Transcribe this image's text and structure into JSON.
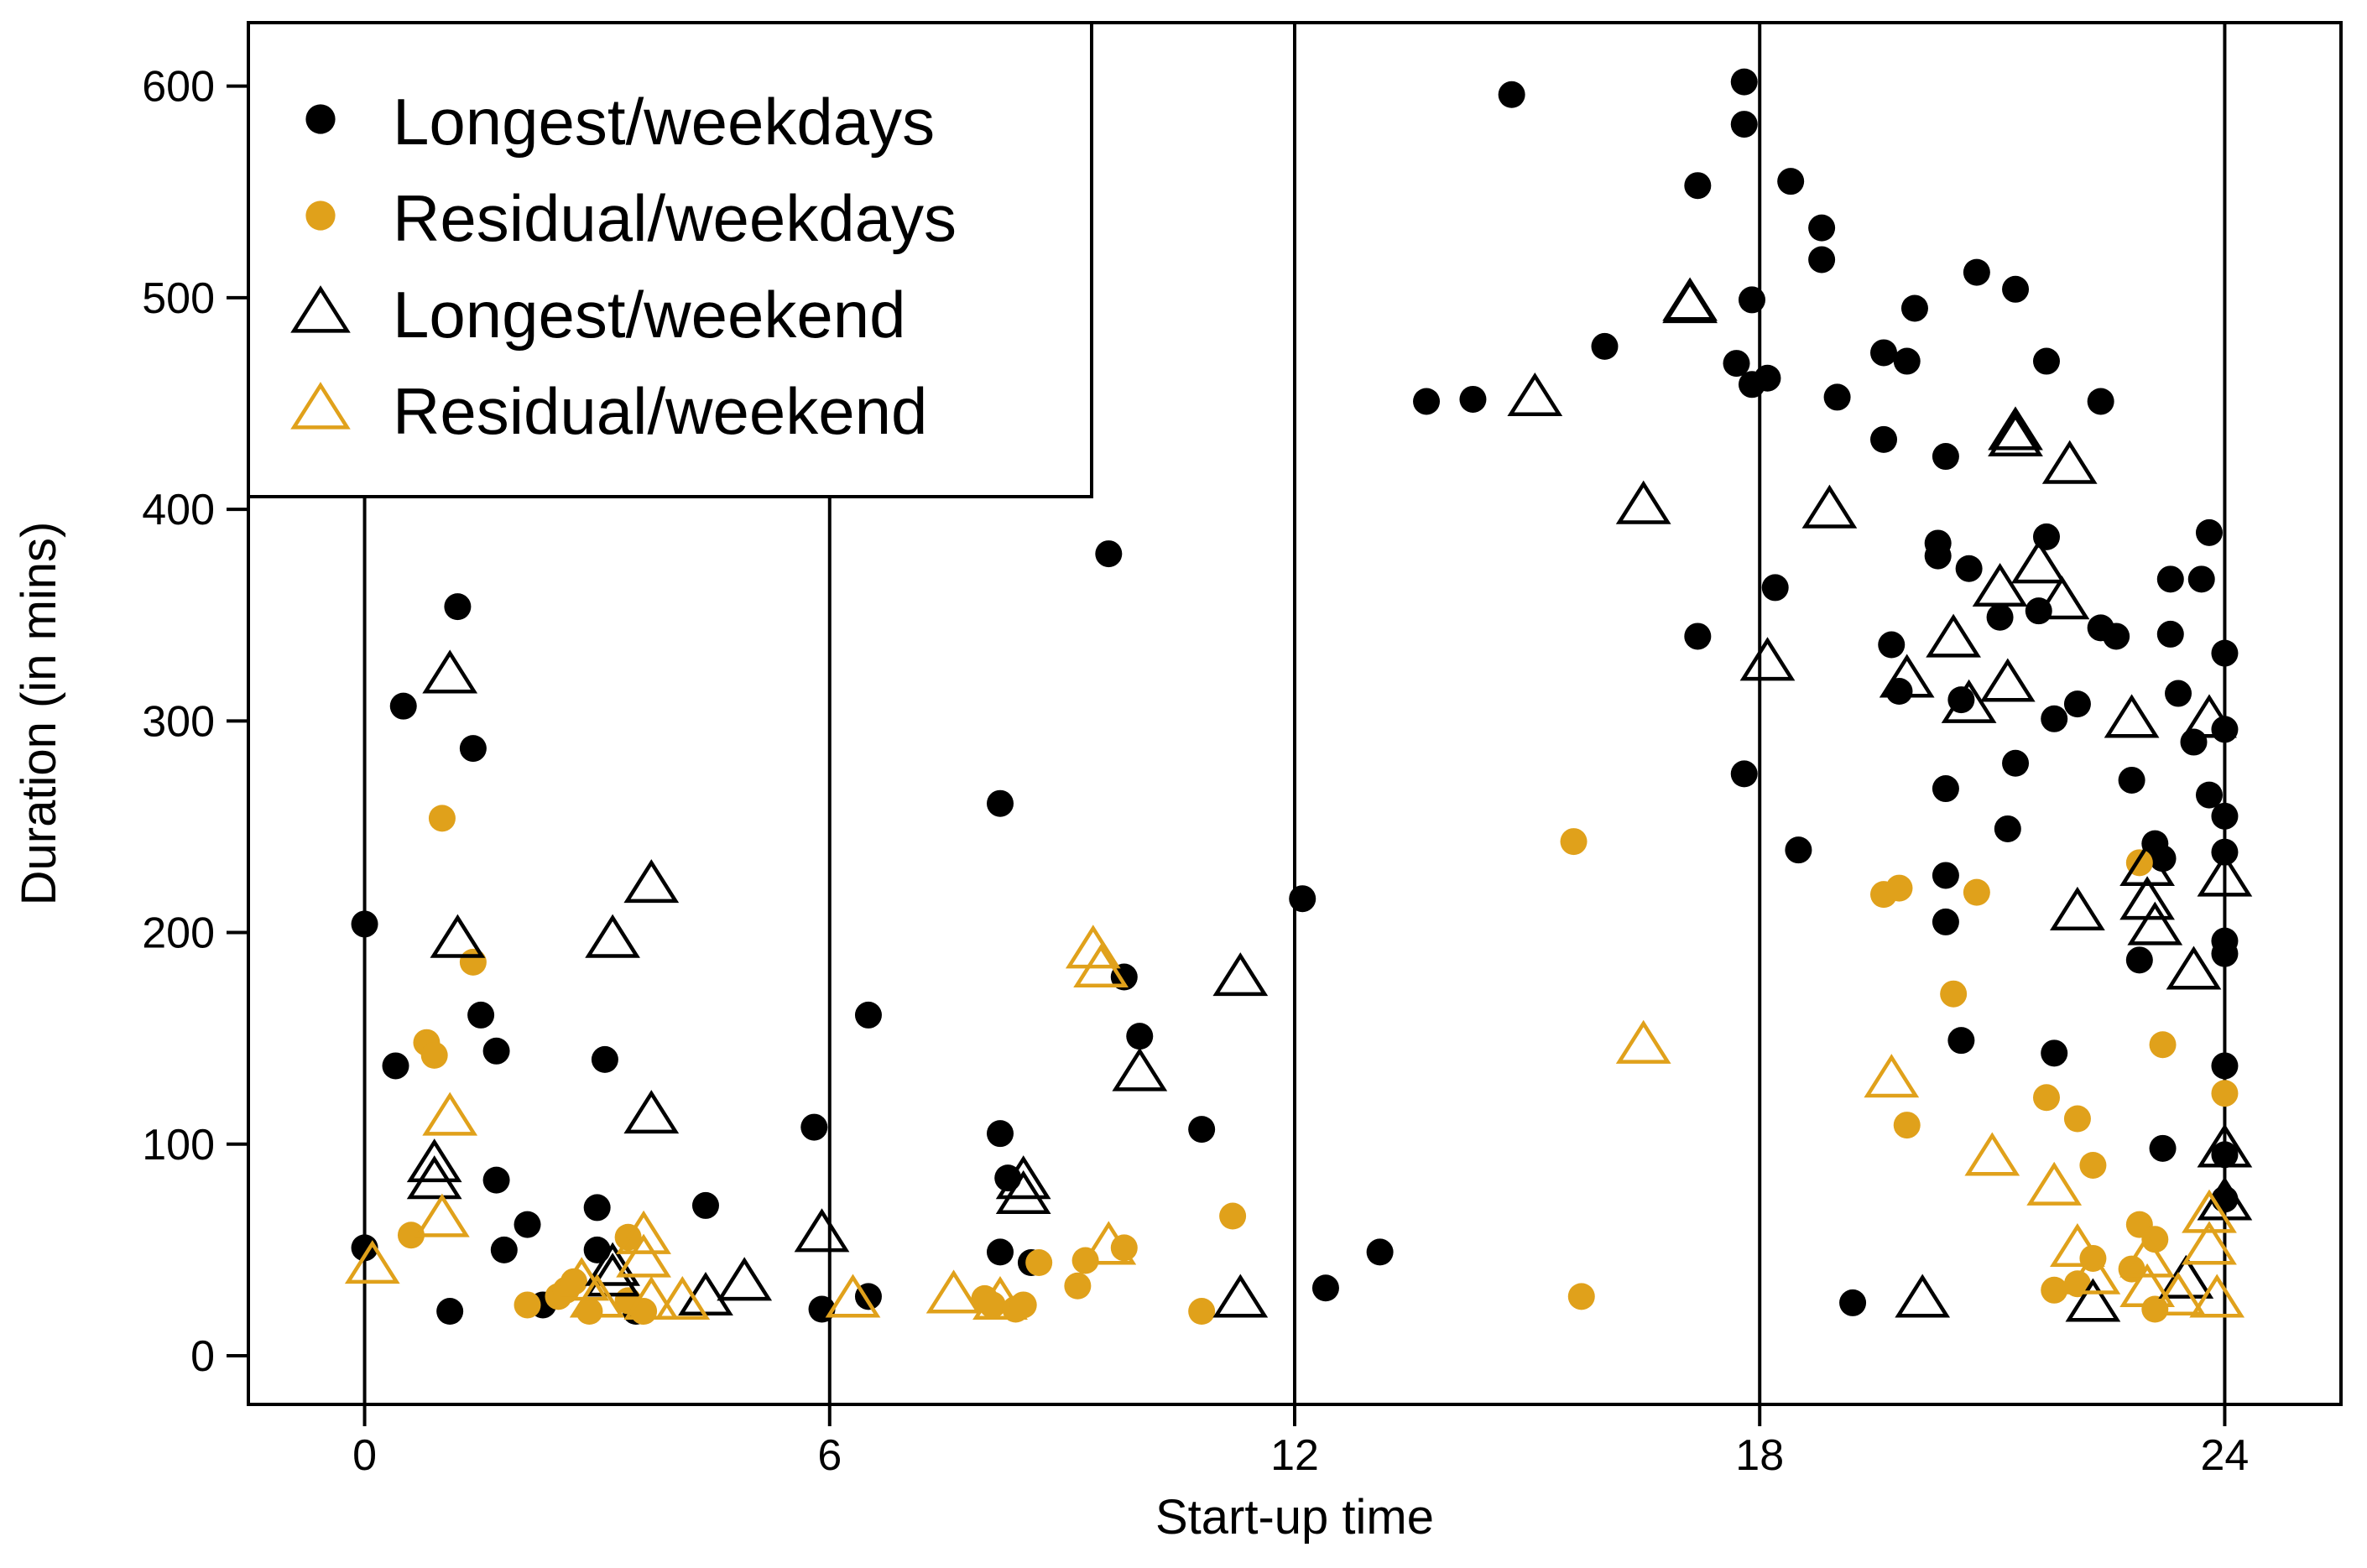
{
  "chart_data": {
    "type": "scatter",
    "title": "",
    "xlabel": "Start-up time",
    "ylabel": "Duration (in mins)",
    "xlim": [
      -1.5,
      25.5
    ],
    "ylim": [
      -23,
      630
    ],
    "x_ticks": [
      0,
      6,
      12,
      18,
      24
    ],
    "x_tick_labels": [
      "0",
      "6",
      "12",
      "18",
      "24"
    ],
    "y_ticks": [
      0,
      100,
      200,
      300,
      400,
      500,
      600
    ],
    "y_tick_labels": [
      "0",
      "100",
      "200",
      "300",
      "400",
      "500",
      "600"
    ],
    "reference_lines_x": [
      0,
      6,
      12,
      18,
      24
    ],
    "legend_position": "top-left",
    "colors": {
      "black": "#000000",
      "orange": "#E0A11B"
    },
    "series": [
      {
        "name": "Longest/weekdays",
        "marker": "circle-filled",
        "color": "#000000",
        "points": [
          [
            0,
            204
          ],
          [
            0,
            51
          ],
          [
            0.4,
            137
          ],
          [
            0.5,
            307
          ],
          [
            1.1,
            21
          ],
          [
            1.2,
            354
          ],
          [
            1.4,
            287
          ],
          [
            1.5,
            161
          ],
          [
            1.7,
            144
          ],
          [
            1.7,
            83
          ],
          [
            1.8,
            50
          ],
          [
            2.1,
            62
          ],
          [
            2.3,
            24
          ],
          [
            3,
            70
          ],
          [
            3,
            50
          ],
          [
            3.1,
            140
          ],
          [
            3.5,
            21
          ],
          [
            4.4,
            71
          ],
          [
            5.8,
            108
          ],
          [
            5.9,
            22
          ],
          [
            6.5,
            161
          ],
          [
            6.5,
            28
          ],
          [
            8.2,
            261
          ],
          [
            8.2,
            105
          ],
          [
            8.3,
            84
          ],
          [
            8.2,
            49
          ],
          [
            8.6,
            44
          ],
          [
            9.6,
            379
          ],
          [
            9.8,
            179
          ],
          [
            10,
            151
          ],
          [
            10.8,
            107
          ],
          [
            12.1,
            216
          ],
          [
            12.4,
            32
          ],
          [
            13.1,
            49
          ],
          [
            13.7,
            451
          ],
          [
            14.3,
            452
          ],
          [
            14.8,
            596
          ],
          [
            16,
            477
          ],
          [
            17.2,
            553
          ],
          [
            17.2,
            340
          ],
          [
            17.7,
            469
          ],
          [
            17.8,
            582
          ],
          [
            17.8,
            602
          ],
          [
            17.9,
            499
          ],
          [
            17.9,
            459
          ],
          [
            17.8,
            275
          ],
          [
            18.1,
            462
          ],
          [
            18.2,
            363
          ],
          [
            18.4,
            555
          ],
          [
            18.5,
            239
          ],
          [
            18.8,
            533
          ],
          [
            18.8,
            518
          ],
          [
            19,
            453
          ],
          [
            19.2,
            25
          ],
          [
            19.6,
            474
          ],
          [
            19.6,
            433
          ],
          [
            19.7,
            336
          ],
          [
            19.8,
            314
          ],
          [
            19.9,
            470
          ],
          [
            20,
            495
          ],
          [
            20.3,
            384
          ],
          [
            20.4,
            425
          ],
          [
            20.3,
            378
          ],
          [
            20.4,
            268
          ],
          [
            20.4,
            227
          ],
          [
            20.4,
            205
          ],
          [
            20.6,
            310
          ],
          [
            20.7,
            372
          ],
          [
            20.8,
            512
          ],
          [
            20.6,
            149
          ],
          [
            21.1,
            349
          ],
          [
            21.2,
            249
          ],
          [
            21.3,
            504
          ],
          [
            21.3,
            280
          ],
          [
            21.6,
            352
          ],
          [
            21.7,
            387
          ],
          [
            21.7,
            470
          ],
          [
            21.8,
            301
          ],
          [
            21.8,
            143
          ],
          [
            22.1,
            308
          ],
          [
            22.4,
            451
          ],
          [
            22.4,
            344
          ],
          [
            22.6,
            340
          ],
          [
            22.8,
            272
          ],
          [
            22.9,
            187
          ],
          [
            23.1,
            242
          ],
          [
            23.2,
            235
          ],
          [
            23.2,
            98
          ],
          [
            23.3,
            341
          ],
          [
            23.3,
            367
          ],
          [
            23.4,
            313
          ],
          [
            23.6,
            290
          ],
          [
            23.7,
            367
          ],
          [
            23.8,
            265
          ],
          [
            23.8,
            389
          ],
          [
            24,
            296
          ],
          [
            24,
            332
          ],
          [
            24,
            255
          ],
          [
            24,
            238
          ],
          [
            24,
            196
          ],
          [
            24,
            190
          ],
          [
            24,
            137
          ],
          [
            24,
            95
          ],
          [
            24,
            74
          ]
        ]
      },
      {
        "name": "Residual/weekdays",
        "marker": "circle-filled",
        "color": "#E0A11B",
        "points": [
          [
            0.6,
            57
          ],
          [
            0.8,
            148
          ],
          [
            0.9,
            142
          ],
          [
            1,
            254
          ],
          [
            1.4,
            186
          ],
          [
            2.1,
            24
          ],
          [
            2.5,
            28
          ],
          [
            2.6,
            31
          ],
          [
            2.7,
            35
          ],
          [
            2.9,
            21
          ],
          [
            3.4,
            56
          ],
          [
            3.4,
            26
          ],
          [
            3.6,
            21
          ],
          [
            8,
            27
          ],
          [
            8.1,
            24
          ],
          [
            8.4,
            22
          ],
          [
            8.5,
            24
          ],
          [
            8.7,
            44
          ],
          [
            9.2,
            33
          ],
          [
            9.3,
            45
          ],
          [
            9.8,
            51
          ],
          [
            10.8,
            21
          ],
          [
            11.2,
            66
          ],
          [
            15.6,
            243
          ],
          [
            15.7,
            28
          ],
          [
            19.6,
            218
          ],
          [
            19.8,
            221
          ],
          [
            19.9,
            109
          ],
          [
            20.5,
            171
          ],
          [
            20.8,
            219
          ],
          [
            21.7,
            122
          ],
          [
            21.8,
            31
          ],
          [
            22.1,
            112
          ],
          [
            22.1,
            34
          ],
          [
            22.3,
            90
          ],
          [
            22.3,
            46
          ],
          [
            22.8,
            41
          ],
          [
            22.9,
            233
          ],
          [
            22.9,
            62
          ],
          [
            23.1,
            55
          ],
          [
            23.1,
            22
          ],
          [
            23.2,
            147
          ],
          [
            24,
            124
          ]
        ]
      },
      {
        "name": "Longest/weekend",
        "marker": "triangle-open",
        "color": "#000000",
        "points": [
          [
            0.9,
            91
          ],
          [
            0.9,
            83
          ],
          [
            1.1,
            322
          ],
          [
            1.2,
            197
          ],
          [
            3.2,
            197
          ],
          [
            3.2,
            37
          ],
          [
            3.2,
            42
          ],
          [
            3.7,
            223
          ],
          [
            3.7,
            114
          ],
          [
            4.4,
            28
          ],
          [
            4.9,
            35
          ],
          [
            5.9,
            58
          ],
          [
            8.5,
            76
          ],
          [
            8.5,
            83
          ],
          [
            10,
            134
          ],
          [
            11.3,
            179
          ],
          [
            11.3,
            27
          ],
          [
            15.1,
            453
          ],
          [
            16.5,
            402
          ],
          [
            17.1,
            497
          ],
          [
            17.1,
            498
          ],
          [
            18.1,
            328
          ],
          [
            18.9,
            400
          ],
          [
            19.9,
            320
          ],
          [
            20.1,
            27
          ],
          [
            20.5,
            339
          ],
          [
            20.7,
            308
          ],
          [
            21.1,
            363
          ],
          [
            21.2,
            318
          ],
          [
            21.3,
            434
          ],
          [
            21.3,
            437
          ],
          [
            21.6,
            374
          ],
          [
            21.9,
            357
          ],
          [
            22,
            421
          ],
          [
            22.1,
            210
          ],
          [
            22.3,
            25
          ],
          [
            22.8,
            301
          ],
          [
            23,
            231
          ],
          [
            23,
            215
          ],
          [
            23.1,
            203
          ],
          [
            23.5,
            36
          ],
          [
            23.6,
            182
          ],
          [
            23.8,
            301
          ],
          [
            24,
            226
          ],
          [
            24,
            98
          ],
          [
            24,
            73
          ]
        ]
      },
      {
        "name": "Residual/weekend",
        "marker": "triangle-open",
        "color": "#E0A11B",
        "points": [
          [
            0.1,
            43
          ],
          [
            1,
            65
          ],
          [
            1.1,
            113
          ],
          [
            2.8,
            35
          ],
          [
            3,
            27
          ],
          [
            3.6,
            57
          ],
          [
            3.6,
            46
          ],
          [
            3.7,
            26
          ],
          [
            4.1,
            26
          ],
          [
            6.3,
            27
          ],
          [
            7.6,
            29
          ],
          [
            8.2,
            26
          ],
          [
            9.4,
            192
          ],
          [
            9.5,
            183
          ],
          [
            9.6,
            52
          ],
          [
            16.5,
            147
          ],
          [
            19.7,
            131
          ],
          [
            21,
            94
          ],
          [
            21.8,
            80
          ],
          [
            22.1,
            51
          ],
          [
            22.3,
            38
          ],
          [
            23,
            32
          ],
          [
            23,
            46
          ],
          [
            23.4,
            28
          ],
          [
            23.8,
            67
          ],
          [
            23.8,
            52
          ],
          [
            23.9,
            27
          ]
        ]
      }
    ],
    "legend": [
      {
        "label": "Longest/weekdays",
        "marker": "circle-filled",
        "color": "#000000"
      },
      {
        "label": "Residual/weekdays",
        "marker": "circle-filled",
        "color": "#E0A11B"
      },
      {
        "label": "Longest/weekend",
        "marker": "triangle-open",
        "color": "#000000"
      },
      {
        "label": "Residual/weekend",
        "marker": "triangle-open",
        "color": "#E0A11B"
      }
    ]
  }
}
